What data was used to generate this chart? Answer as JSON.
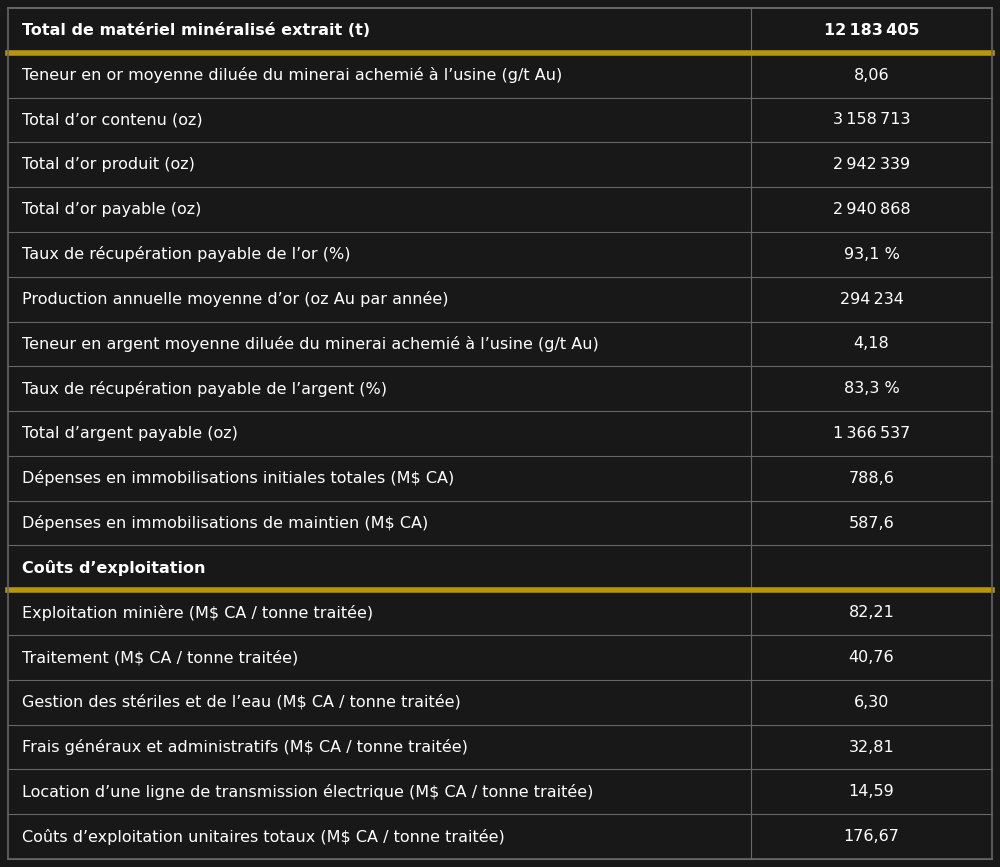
{
  "bg_color": "#181818",
  "text_color": "#ffffff",
  "gold_color": "#b8960c",
  "gray_line": "#666666",
  "col_split": 0.755,
  "rows": [
    {
      "label": "Total de matériel minéralisé extrait (t)",
      "value": "12 183 405",
      "bold_label": true,
      "bold_value": true,
      "section_header": false,
      "section_start": false
    },
    {
      "label": "Teneur en or moyenne diluée du minerai achemié à l’usine (g/t Au)",
      "value": "8,06",
      "bold_label": false,
      "bold_value": false,
      "section_header": false,
      "section_start": false
    },
    {
      "label": "Total d’or contenu (oz)",
      "value": "3 158 713",
      "bold_label": false,
      "bold_value": false,
      "section_header": false,
      "section_start": false
    },
    {
      "label": "Total d’or produit (oz)",
      "value": "2 942 339",
      "bold_label": false,
      "bold_value": false,
      "section_header": false,
      "section_start": false
    },
    {
      "label": "Total d’or payable (oz)",
      "value": "2 940 868",
      "bold_label": false,
      "bold_value": false,
      "section_header": false,
      "section_start": false
    },
    {
      "label": "Taux de récupération payable de l’or (%)",
      "value": "93,1 %",
      "bold_label": false,
      "bold_value": false,
      "section_header": false,
      "section_start": false
    },
    {
      "label": "Production annuelle moyenne d’or (oz Au par année)",
      "value": "294 234",
      "bold_label": false,
      "bold_value": false,
      "section_header": false,
      "section_start": false
    },
    {
      "label": "Teneur en argent moyenne diluée du minerai achemié à l’usine (g/t Au)",
      "value": "4,18",
      "bold_label": false,
      "bold_value": false,
      "section_header": false,
      "section_start": false
    },
    {
      "label": "Taux de récupération payable de l’argent (%)",
      "value": "83,3 %",
      "bold_label": false,
      "bold_value": false,
      "section_header": false,
      "section_start": false
    },
    {
      "label": "Total d’argent payable (oz)",
      "value": "1 366 537",
      "bold_label": false,
      "bold_value": false,
      "section_header": false,
      "section_start": false
    },
    {
      "label": "Dépenses en immobilisations initiales totales (M$ CA)",
      "value": "788,6",
      "bold_label": false,
      "bold_value": false,
      "section_header": false,
      "section_start": false
    },
    {
      "label": "Dépenses en immobilisations de maintien (M$ CA)",
      "value": "587,6",
      "bold_label": false,
      "bold_value": false,
      "section_header": false,
      "section_start": false
    },
    {
      "label": "Coûts d’exploitation",
      "value": "",
      "bold_label": true,
      "bold_value": false,
      "section_header": true,
      "section_start": false
    },
    {
      "label": "Exploitation minière (M$ CA / tonne traitée)",
      "value": "82,21",
      "bold_label": false,
      "bold_value": false,
      "section_header": false,
      "section_start": false
    },
    {
      "label": "Traitement (M$ CA / tonne traitée)",
      "value": "40,76",
      "bold_label": false,
      "bold_value": false,
      "section_header": false,
      "section_start": false
    },
    {
      "label": "Gestion des stériles et de l’eau (M$ CA / tonne traitée)",
      "value": "6,30",
      "bold_label": false,
      "bold_value": false,
      "section_header": false,
      "section_start": false
    },
    {
      "label": "Frais généraux et administratifs (M$ CA / tonne traitée)",
      "value": "32,81",
      "bold_label": false,
      "bold_value": false,
      "section_header": false,
      "section_start": false
    },
    {
      "label": "Location d’une ligne de transmission électrique (M$ CA / tonne traitée)",
      "value": "14,59",
      "bold_label": false,
      "bold_value": false,
      "section_header": false,
      "section_start": false
    },
    {
      "label": "Coûts d’exploitation unitaires totaux (M$ CA / tonne traitée)",
      "value": "176,67",
      "bold_label": false,
      "bold_value": false,
      "section_header": false,
      "section_start": false
    }
  ]
}
